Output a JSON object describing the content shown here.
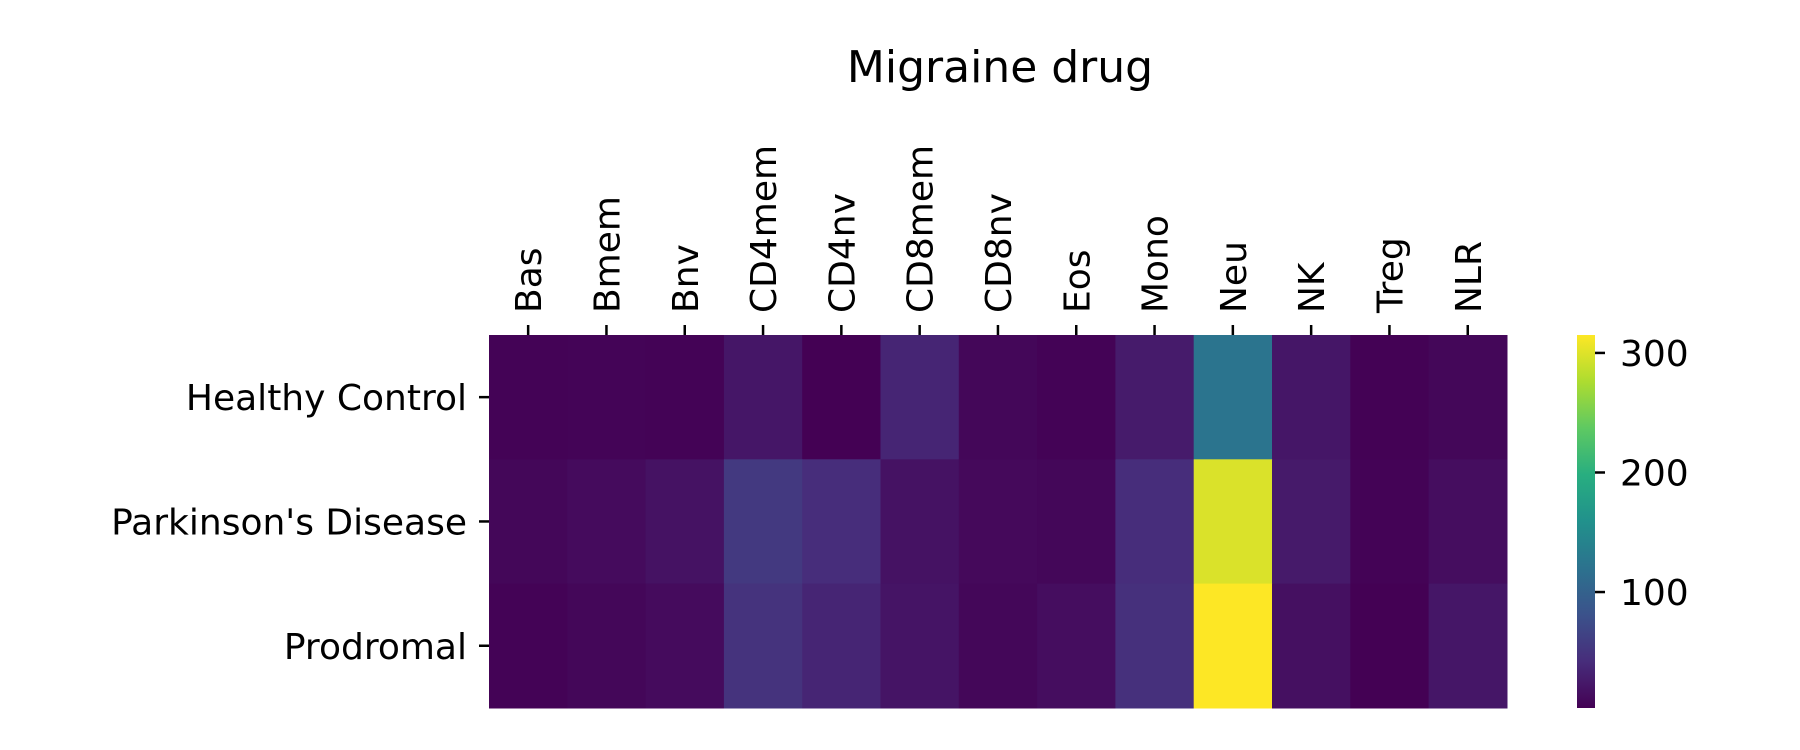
{
  "chart_data": {
    "type": "heatmap",
    "title": "Migraine drug",
    "xlabel": "",
    "ylabel": "",
    "x_categories": [
      "Bas",
      "Bmem",
      "Bnv",
      "CD4mem",
      "CD4nv",
      "CD8mem",
      "CD8nv",
      "Eos",
      "Mono",
      "Neu",
      "NK",
      "Treg",
      "NLR"
    ],
    "y_categories": [
      "Healthy Control",
      "Parkinson's Disease",
      "Prodromal"
    ],
    "values": [
      [
        5,
        6,
        5,
        22,
        3,
        35,
        8,
        5,
        26,
        122,
        22,
        4,
        8
      ],
      [
        8,
        12,
        18,
        55,
        42,
        18,
        10,
        8,
        42,
        298,
        25,
        5,
        14
      ],
      [
        5,
        8,
        12,
        48,
        35,
        20,
        8,
        14,
        45,
        315,
        16,
        3,
        22
      ]
    ],
    "colormap": "viridis",
    "colorbar": {
      "min": 3,
      "max": 315,
      "ticks": [
        100,
        200,
        300
      ],
      "tick_labels": [
        "100",
        "200",
        "300"
      ],
      "placement": "right"
    }
  }
}
